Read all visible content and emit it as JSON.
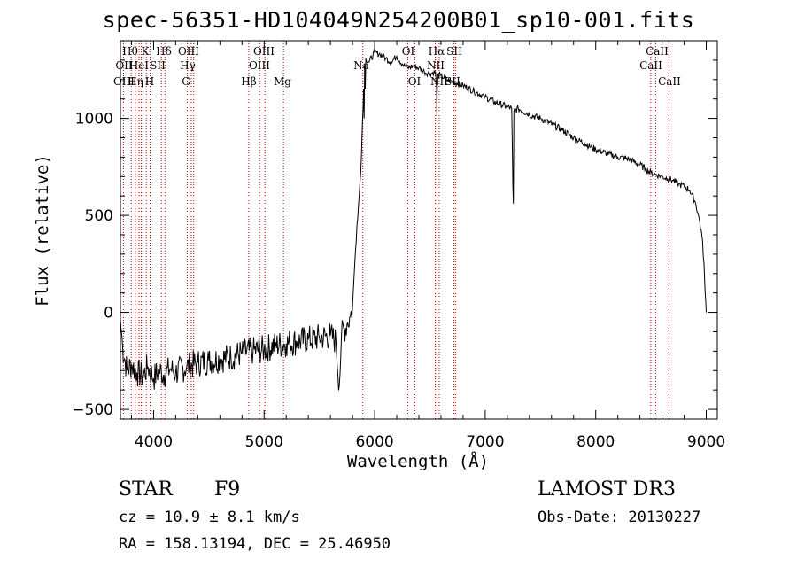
{
  "chart_data": {
    "type": "line",
    "title": "spec-56351-HD104049N254200B01_sp10-001.fits",
    "xlabel": "Wavelength (Å)",
    "ylabel": "Flux (relative)",
    "xlim": [
      3700,
      9100
    ],
    "ylim": [
      -550,
      1400
    ],
    "xticks": [
      4000,
      5000,
      6000,
      7000,
      8000,
      9000
    ],
    "yticks": [
      -500,
      0,
      500,
      1000
    ],
    "series": [
      {
        "name": "flux",
        "x": [
          3700,
          3720,
          3760,
          3800,
          3850,
          3900,
          3950,
          4000,
          4050,
          4100,
          4150,
          4200,
          4300,
          4400,
          4500,
          4600,
          4700,
          4800,
          4900,
          5000,
          5100,
          5200,
          5300,
          5400,
          5500,
          5600,
          5650,
          5680,
          5700,
          5750,
          5780,
          5800,
          5820,
          5840,
          5860,
          5880,
          5890,
          5895,
          5900,
          5905,
          5910,
          5915,
          5920,
          5950,
          6000,
          6050,
          6100,
          6150,
          6200,
          6250,
          6300,
          6350,
          6400,
          6450,
          6500,
          6550,
          6560,
          6563,
          6566,
          6570,
          6600,
          6650,
          6700,
          6750,
          6800,
          6900,
          7000,
          7100,
          7200,
          7240,
          7250,
          7255,
          7260,
          7300,
          7400,
          7500,
          7600,
          7700,
          7800,
          7900,
          8000,
          8100,
          8200,
          8300,
          8400,
          8450,
          8500,
          8550,
          8600,
          8650,
          8700,
          8750,
          8800,
          8850,
          8900,
          8930,
          8960,
          8980,
          8990,
          9000
        ],
        "y": [
          -40,
          -180,
          -300,
          -270,
          -310,
          -330,
          -280,
          -340,
          -300,
          -320,
          -290,
          -310,
          -280,
          -260,
          -250,
          -240,
          -230,
          -210,
          -200,
          -190,
          -170,
          -160,
          -150,
          -140,
          -130,
          -120,
          -150,
          -380,
          -120,
          -60,
          -20,
          30,
          250,
          450,
          600,
          800,
          980,
          1050,
          1150,
          1000,
          1280,
          1150,
          1310,
          1290,
          1340,
          1330,
          1310,
          1290,
          1320,
          1280,
          1260,
          1270,
          1260,
          1240,
          1230,
          1240,
          1150,
          1010,
          1150,
          1220,
          1220,
          1200,
          1190,
          1180,
          1170,
          1140,
          1110,
          1080,
          1060,
          1050,
          650,
          560,
          1040,
          1050,
          1020,
          1000,
          970,
          940,
          900,
          870,
          840,
          820,
          800,
          790,
          760,
          740,
          720,
          710,
          700,
          690,
          680,
          660,
          650,
          630,
          570,
          500,
          400,
          250,
          100,
          0
        ]
      }
    ],
    "lines": [
      {
        "label": "Hθ",
        "x": 3798
      },
      {
        "label": "OII",
        "x": 3727
      },
      {
        "label": "OIII",
        "x": 3869
      },
      {
        "label": "He I",
        "x": 3889
      },
      {
        "label": "K",
        "x": 3934
      },
      {
        "label": "Hη",
        "x": 3835
      },
      {
        "label": "H",
        "x": 3969
      },
      {
        "label": "SII",
        "x": 4070
      },
      {
        "label": "Hδ",
        "x": 4102
      },
      {
        "label": "OIII",
        "x": 4363
      },
      {
        "label": "Hγ",
        "x": 4341
      },
      {
        "label": "G",
        "x": 4305
      },
      {
        "label": "Hβ",
        "x": 4861
      },
      {
        "label": "OIII",
        "x": 4959
      },
      {
        "label": "OIII",
        "x": 5007
      },
      {
        "label": "Mg",
        "x": 5175
      },
      {
        "label": "Na",
        "x": 5893
      },
      {
        "label": "OI",
        "x": 6300
      },
      {
        "label": "OI",
        "x": 6364
      },
      {
        "label": "Hα",
        "x": 6563
      },
      {
        "label": "NII",
        "x": 6548
      },
      {
        "label": "NII",
        "x": 6584
      },
      {
        "label": "SII",
        "x": 6717
      },
      {
        "label": "SII",
        "x": 6731
      },
      {
        "label": "CaII",
        "x": 8498
      },
      {
        "label": "CaII",
        "x": 8542
      },
      {
        "label": "CaII",
        "x": 8662
      }
    ]
  },
  "labels": {
    "line_labels_row1": [
      "Hθ",
      "K",
      "Hδ",
      "OIII",
      "OIII",
      "OI",
      "Hα",
      "SII",
      "CaII"
    ],
    "line_labels_row2": [
      "OII",
      "HeI",
      "SII",
      "Hγ",
      "OIII",
      "Na",
      "NII",
      "CaII"
    ],
    "line_labels_row3": [
      "OIII",
      "Hη",
      "H",
      "G",
      "Hβ",
      "Mg",
      "OI",
      "NII",
      "SII",
      "CaII"
    ]
  },
  "info": {
    "class": "STAR",
    "subclass": "F9",
    "survey": "LAMOST DR3",
    "cz": "cz = 10.9 ± 8.1 km/s",
    "obs_date": "Obs-Date: 20130227",
    "coords": "RA = 158.13194, DEC =  25.46950"
  }
}
